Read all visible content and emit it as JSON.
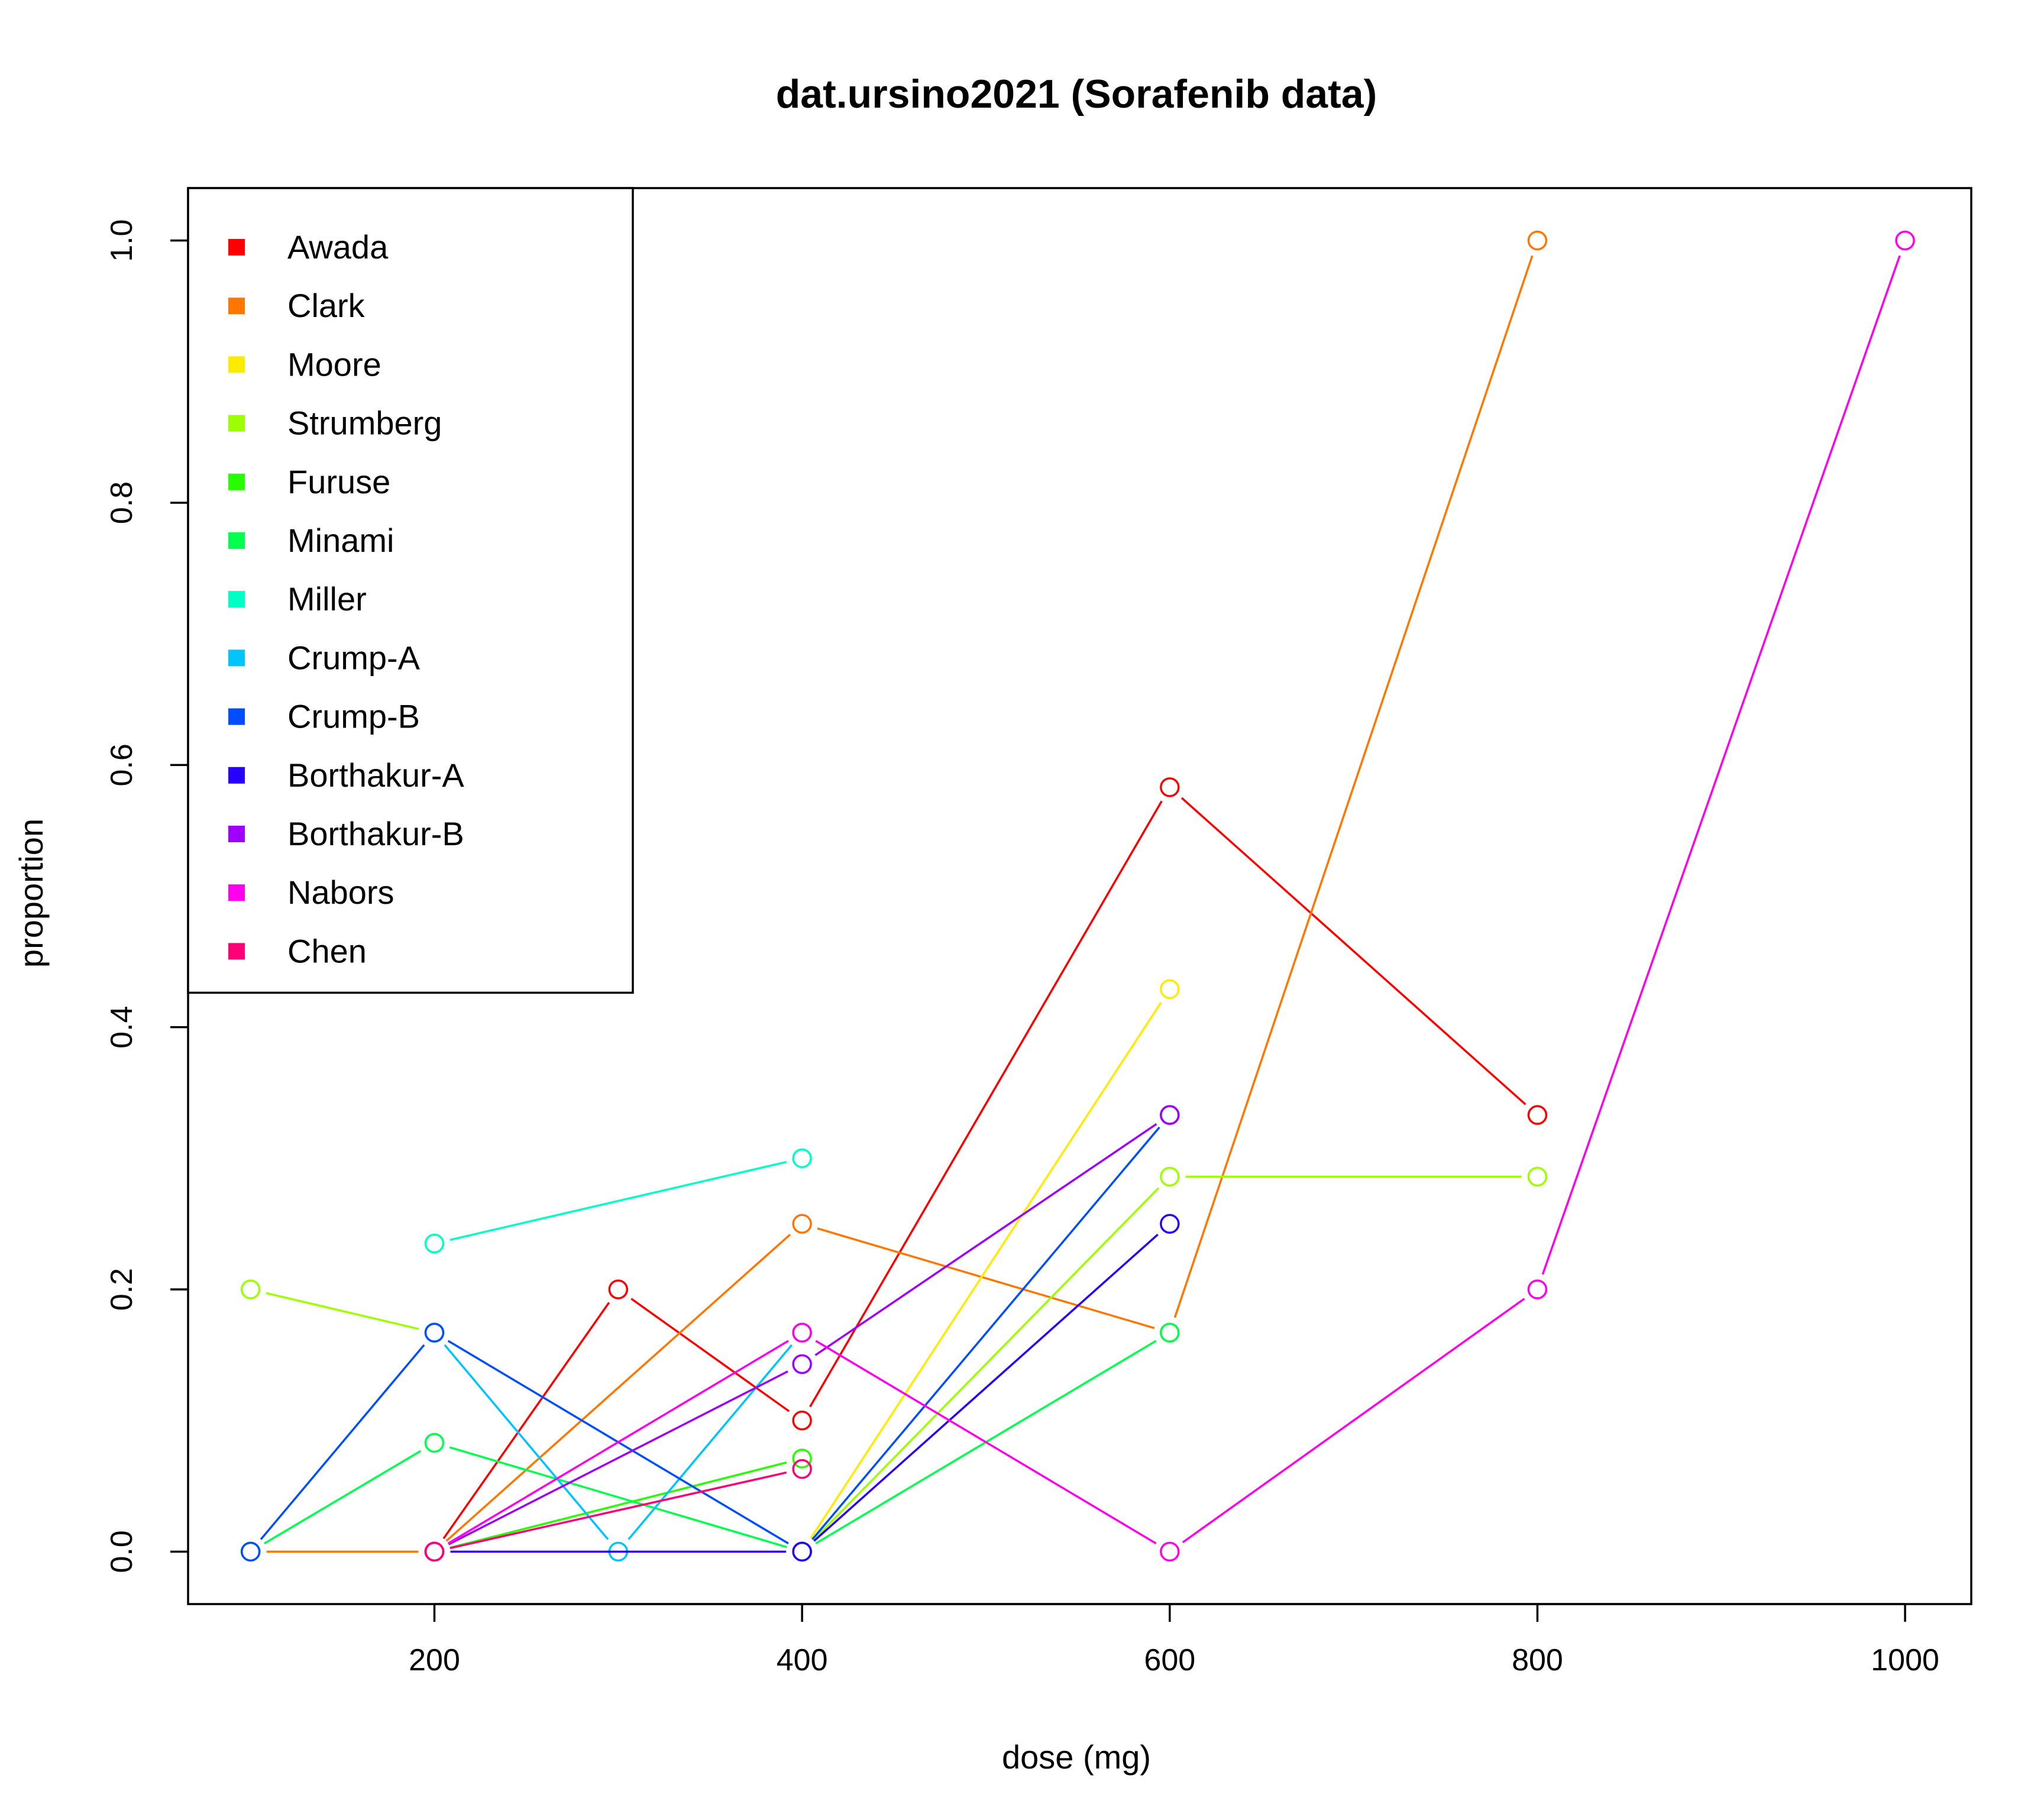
{
  "chart_data": {
    "type": "line",
    "title": "dat.ursino2021 (Sorafenib data)",
    "xlabel": "dose (mg)",
    "ylabel": "proportion",
    "xlim": [
      66,
      1036
    ],
    "ylim": [
      -0.04,
      1.04
    ],
    "x_ticks": [
      "200",
      "400",
      "600",
      "800",
      "1000"
    ],
    "y_ticks": [
      "0.0",
      "0.2",
      "0.4",
      "0.6",
      "0.8",
      "1.0"
    ],
    "legend_position": "top-left",
    "grid": false,
    "series": [
      {
        "name": "Awada",
        "color": "#FF0000",
        "points": [
          [
            200,
            0
          ],
          [
            300,
            0.2
          ],
          [
            400,
            0.1
          ],
          [
            600,
            0.583
          ],
          [
            800,
            0.333
          ]
        ]
      },
      {
        "name": "Clark",
        "color": "#FF7600",
        "points": [
          [
            100,
            0
          ],
          [
            200,
            0
          ],
          [
            400,
            0.25
          ],
          [
            600,
            0.167
          ],
          [
            800,
            1.0
          ]
        ]
      },
      {
        "name": "Moore",
        "color": "#FFEB00",
        "points": [
          [
            400,
            0
          ],
          [
            600,
            0.429
          ]
        ]
      },
      {
        "name": "Strumberg",
        "color": "#9DFF00",
        "points": [
          [
            100,
            0.2
          ],
          [
            200,
            0.167
          ],
          [
            400,
            0
          ],
          [
            600,
            0.286
          ],
          [
            800,
            0.286
          ]
        ]
      },
      {
        "name": "Furuse",
        "color": "#27FF00",
        "points": [
          [
            200,
            0
          ],
          [
            400,
            0.071
          ]
        ]
      },
      {
        "name": "Minami",
        "color": "#00FF4E",
        "points": [
          [
            100,
            0
          ],
          [
            200,
            0.083
          ],
          [
            400,
            0
          ],
          [
            600,
            0.167
          ]
        ]
      },
      {
        "name": "Miller",
        "color": "#00FFC4",
        "points": [
          [
            200,
            0.235
          ],
          [
            400,
            0.3
          ]
        ]
      },
      {
        "name": "Crump-A",
        "color": "#00C4FF",
        "points": [
          [
            200,
            0.167
          ],
          [
            300,
            0
          ],
          [
            400,
            0.167
          ]
        ]
      },
      {
        "name": "Crump-B",
        "color": "#004EFF",
        "points": [
          [
            100,
            0
          ],
          [
            200,
            0.167
          ],
          [
            400,
            0
          ],
          [
            600,
            0.333
          ]
        ]
      },
      {
        "name": "Borthakur-A",
        "color": "#2700FF",
        "points": [
          [
            200,
            0
          ],
          [
            400,
            0
          ],
          [
            600,
            0.25
          ]
        ]
      },
      {
        "name": "Borthakur-B",
        "color": "#9D00FF",
        "points": [
          [
            200,
            0
          ],
          [
            400,
            0.143
          ],
          [
            600,
            0.333
          ]
        ]
      },
      {
        "name": "Nabors",
        "color": "#FF00EB",
        "points": [
          [
            200,
            0
          ],
          [
            400,
            0.167
          ],
          [
            600,
            0
          ],
          [
            800,
            0.2
          ],
          [
            1000,
            1.0
          ]
        ]
      },
      {
        "name": "Chen",
        "color": "#FF0076",
        "points": [
          [
            200,
            0
          ],
          [
            400,
            0.063
          ]
        ]
      }
    ]
  }
}
